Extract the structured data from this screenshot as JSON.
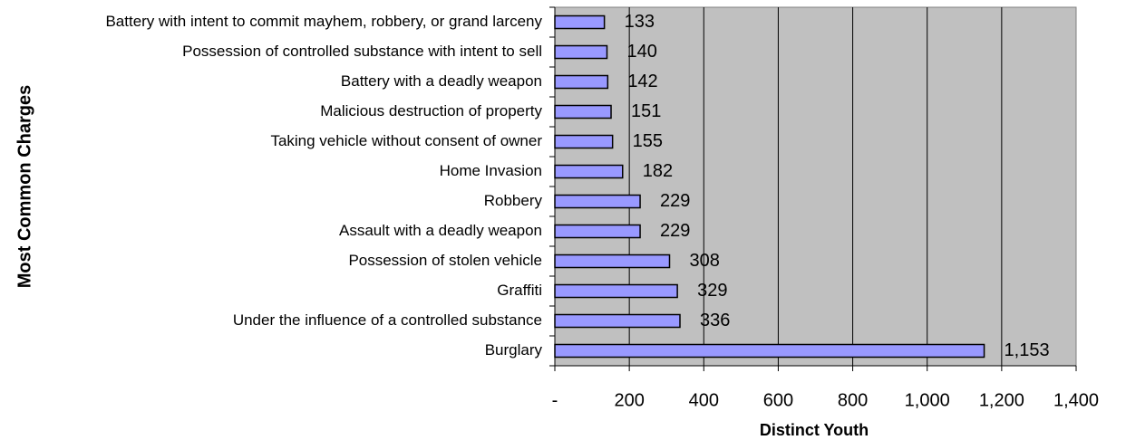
{
  "chart_data": {
    "type": "bar",
    "orientation": "horizontal",
    "xlabel": "Distinct Youth",
    "ylabel": "Most Common Charges",
    "categories": [
      "Battery with intent to commit mayhem, robbery, or grand larceny",
      "Possession of controlled substance with intent to sell",
      "Battery with a deadly weapon",
      "Malicious destruction of property",
      "Taking vehicle without consent of owner",
      "Home Invasion",
      "Robbery",
      "Assault with a deadly weapon",
      "Possession of stolen vehicle",
      "Graffiti",
      "Under the influence of a controlled substance",
      "Burglary"
    ],
    "values": [
      133,
      140,
      142,
      151,
      155,
      182,
      229,
      229,
      308,
      329,
      336,
      1153
    ],
    "value_labels": [
      "133",
      "140",
      "142",
      "151",
      "155",
      "182",
      "229",
      "229",
      "308",
      "329",
      "336",
      "1,153"
    ],
    "color": "#9999ff",
    "xlim": [
      0,
      1400
    ],
    "xticks": [
      {
        "value": 0,
        "label": "-"
      },
      200,
      400,
      600,
      800,
      {
        "value": 1000,
        "label": "1,000"
      },
      {
        "value": 1200,
        "label": "1,200"
      },
      {
        "value": 1400,
        "label": "1,400"
      }
    ],
    "grid": true
  }
}
